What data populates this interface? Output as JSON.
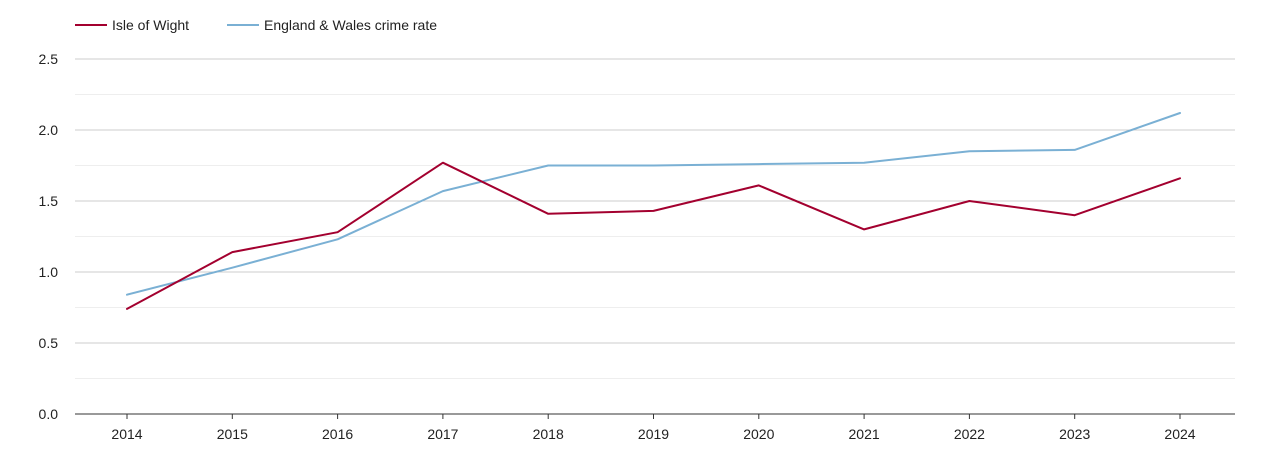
{
  "chart_data": {
    "type": "line",
    "title": "",
    "xlabel": "",
    "ylabel": "",
    "categories": [
      "2014",
      "2015",
      "2016",
      "2017",
      "2018",
      "2019",
      "2020",
      "2021",
      "2022",
      "2023",
      "2024"
    ],
    "series": [
      {
        "name": "Isle of Wight",
        "color": "#a3002f",
        "values": [
          0.74,
          1.14,
          1.28,
          1.77,
          1.41,
          1.43,
          1.61,
          1.3,
          1.5,
          1.4,
          1.66
        ]
      },
      {
        "name": "England & Wales crime rate",
        "color": "#7ab0d4",
        "values": [
          0.84,
          1.03,
          1.23,
          1.57,
          1.75,
          1.75,
          1.76,
          1.77,
          1.85,
          1.86,
          2.12
        ]
      }
    ],
    "ylim": [
      0,
      2.5
    ],
    "y_ticks": [
      "0.0",
      "0.5",
      "1.0",
      "1.5",
      "2.0",
      "2.5"
    ],
    "y_tick_values": [
      0,
      0.5,
      1.0,
      1.5,
      2.0,
      2.5
    ],
    "grid": true,
    "legend_position": "top-left",
    "colors": {
      "grid_major": "#cccccc",
      "grid_minor": "#eeeeee",
      "axis": "#333333"
    }
  }
}
